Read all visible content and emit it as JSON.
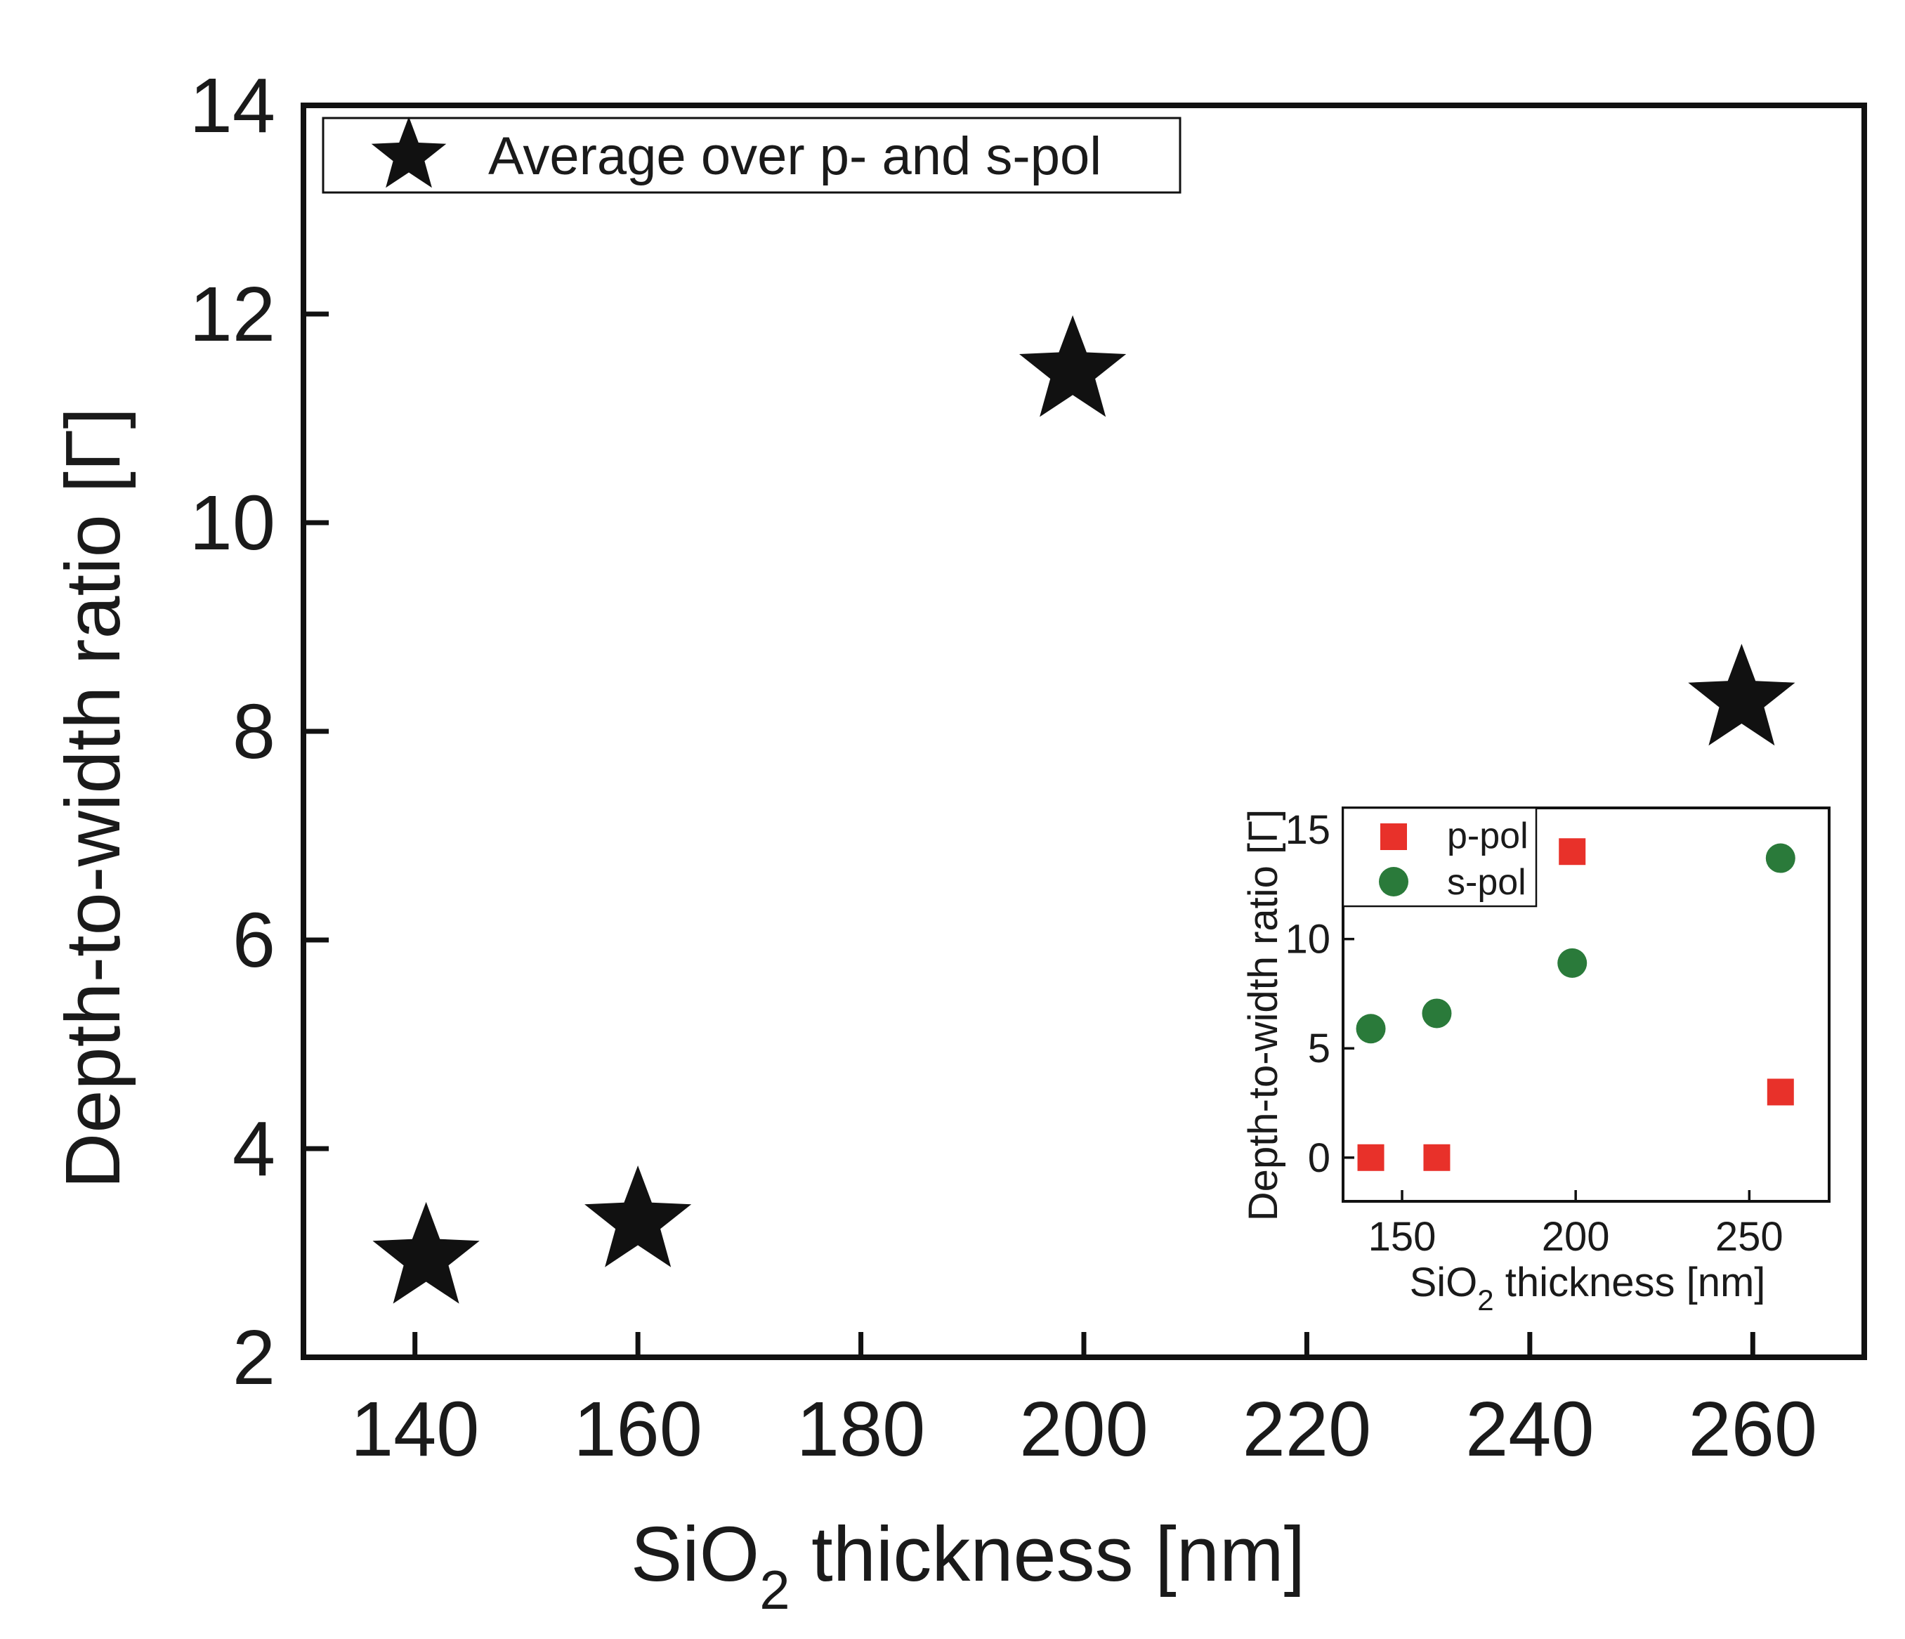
{
  "chart_data": [
    {
      "type": "scatter",
      "id": "main",
      "title": "",
      "xlabel": "SiO",
      "xlabel_subscript": "2",
      "xlabel_suffix": " thickness [nm]",
      "ylabel": "Depth-to-width ratio [Γ]",
      "xlim": [
        130,
        270
      ],
      "ylim": [
        2,
        14
      ],
      "xticks": [
        140,
        160,
        180,
        200,
        220,
        240,
        260
      ],
      "yticks": [
        2,
        4,
        6,
        8,
        10,
        12,
        14
      ],
      "grid": false,
      "legend_position": "top-left",
      "series": [
        {
          "name": "Average over p- and s-pol",
          "marker": "star",
          "color": "#111111",
          "x": [
            141,
            160,
            199,
            259
          ],
          "y": [
            2.95,
            3.3,
            11.45,
            8.3
          ]
        }
      ]
    },
    {
      "type": "scatter",
      "id": "inset",
      "title": "",
      "xlabel": "SiO",
      "xlabel_subscript": "2",
      "xlabel_suffix": " thickness [nm]",
      "ylabel": "Depth-to-width ratio [Γ]",
      "xlim": [
        133,
        273
      ],
      "ylim": [
        -2,
        16
      ],
      "xticks": [
        150,
        200,
        250
      ],
      "yticks": [
        0,
        5,
        10,
        15
      ],
      "grid": false,
      "legend_position": "top-left",
      "series": [
        {
          "name": "p-pol",
          "marker": "square",
          "color": "#e8312a",
          "x": [
            141,
            160,
            199,
            259
          ],
          "y": [
            0,
            0,
            14,
            3
          ]
        },
        {
          "name": "s-pol",
          "marker": "circle",
          "color": "#2a7a3a",
          "x": [
            141,
            160,
            199,
            259
          ],
          "y": [
            5.9,
            6.6,
            8.9,
            13.7
          ]
        }
      ]
    }
  ]
}
